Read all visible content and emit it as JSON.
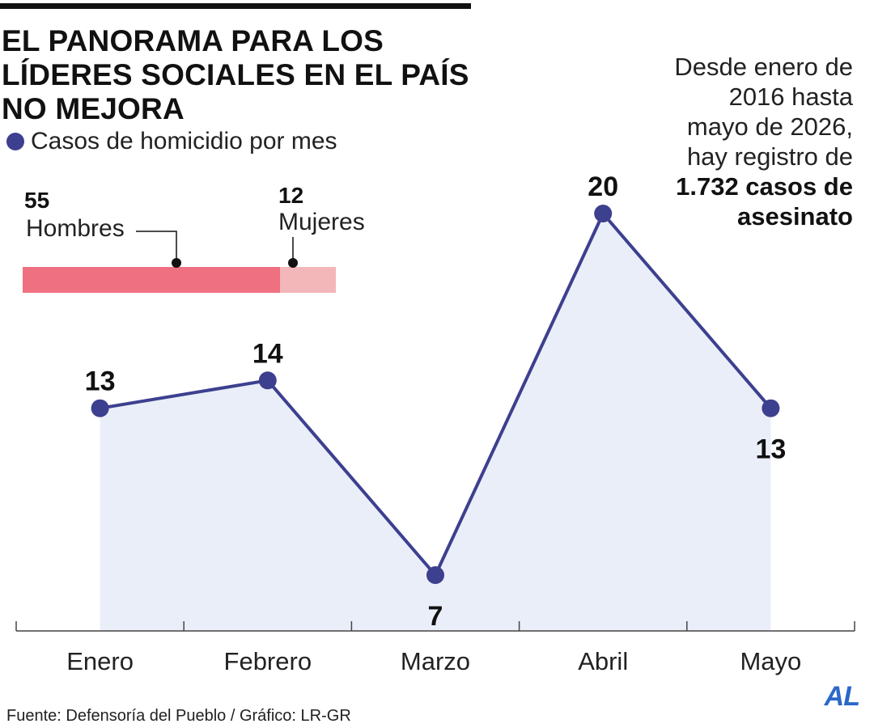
{
  "title": "EL PANORAMA PARA LOS LÍDERES SOCIALES EN EL PAÍS NO MEJORA",
  "legend": {
    "label": "Casos de homicidio por mes"
  },
  "side_note": {
    "line1": "Desde enero de",
    "line2": "2016 hasta",
    "line3": "mayo de 2026,",
    "line4": "hay registro de",
    "bold1": "1.732 casos de",
    "bold2": "asesinato"
  },
  "gender": {
    "men": {
      "value": "55",
      "label": "Hombres"
    },
    "women": {
      "value": "12",
      "label": "Mujeres"
    }
  },
  "colors": {
    "series": "#3d3f8f",
    "fill": "#e6ebf7",
    "men": "#ef7081",
    "women": "#f3b6b9"
  },
  "footer": "Fuente: Defensoría del Pueblo / Gráfico: LR-GR",
  "brand": "AL",
  "chart_data": {
    "type": "line",
    "categories": [
      "Enero",
      "Febrero",
      "Marzo",
      "Abril",
      "Mayo"
    ],
    "series": [
      {
        "values": [
          13,
          14,
          7,
          20,
          13
        ]
      }
    ],
    "data_labels": [
      "13",
      "14",
      "7",
      "20",
      "13"
    ],
    "area_fill": true,
    "grid": false,
    "axis_ticks": true
  }
}
